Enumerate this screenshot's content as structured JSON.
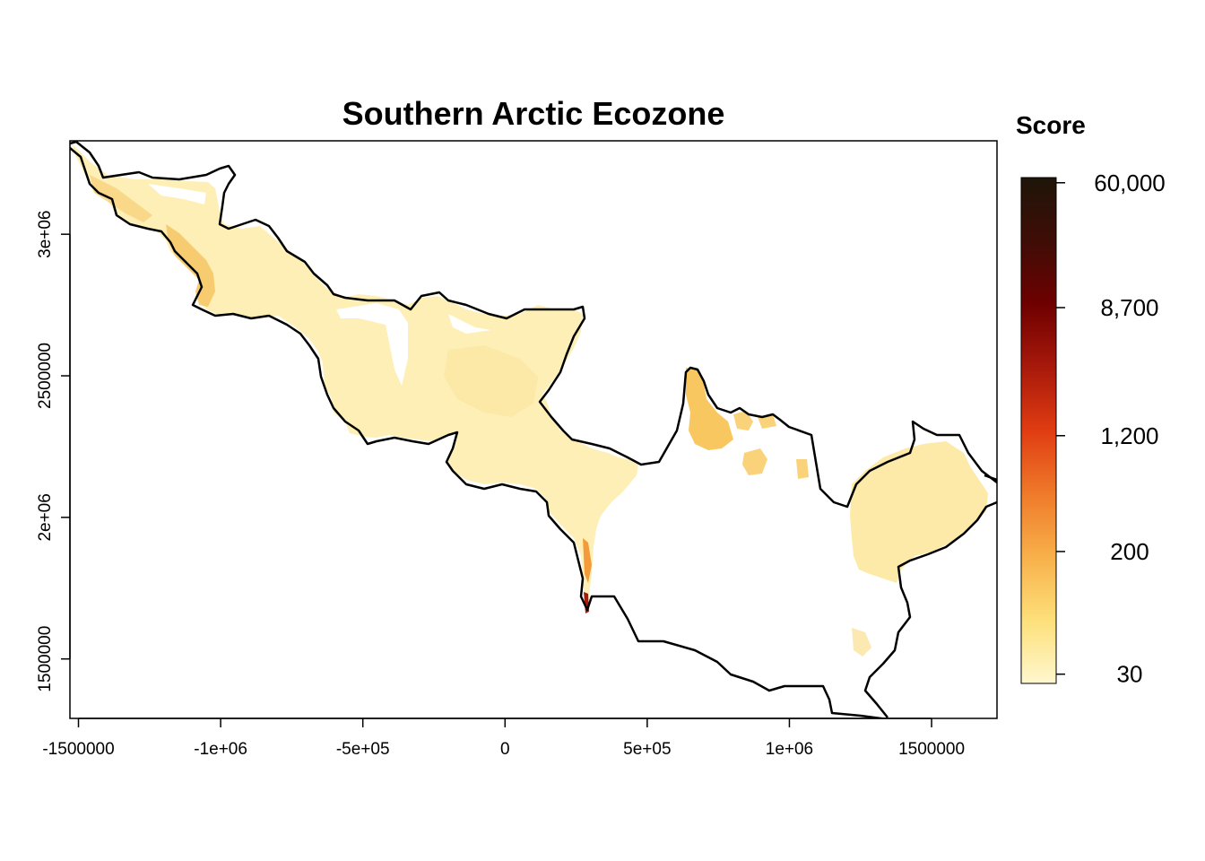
{
  "title": "Southern Arctic Ecozone",
  "legend": {
    "title": "Score",
    "tick_labels": [
      "60,000",
      "8,700",
      "1,200",
      "200",
      "30"
    ],
    "tick_values": [
      60000,
      8700,
      1200,
      200,
      30
    ],
    "colors": [
      "#fff7cf",
      "#fde07a",
      "#f8b04a",
      "#ef7a2a",
      "#e03c12",
      "#a8190b",
      "#6e0000",
      "#3f0d06",
      "#1e1509"
    ],
    "scale": "log"
  },
  "x_axis": {
    "tick_labels": [
      "-1500000",
      "-1e+06",
      "-5e+05",
      "0",
      "5e+05",
      "1e+06",
      "1500000"
    ],
    "tick_values": [
      -1500000,
      -1000000,
      -500000,
      0,
      500000,
      1000000,
      1500000
    ]
  },
  "y_axis": {
    "tick_labels": [
      "1500000",
      "2e+06",
      "2500000",
      "3e+06"
    ],
    "tick_values": [
      1500000,
      2000000,
      2500000,
      3000000
    ]
  },
  "chart_data": {
    "type": "heatmap",
    "title": "Southern Arctic Ecozone",
    "xlabel": "",
    "ylabel": "",
    "xlim": [
      -1530000,
      1730000
    ],
    "ylim": [
      1290000,
      3330000
    ],
    "colorbar": {
      "label": "Score",
      "ticks": [
        30,
        200,
        1200,
        8700,
        60000
      ],
      "scale": "log"
    },
    "grid": false,
    "legend_position": "right"
  }
}
